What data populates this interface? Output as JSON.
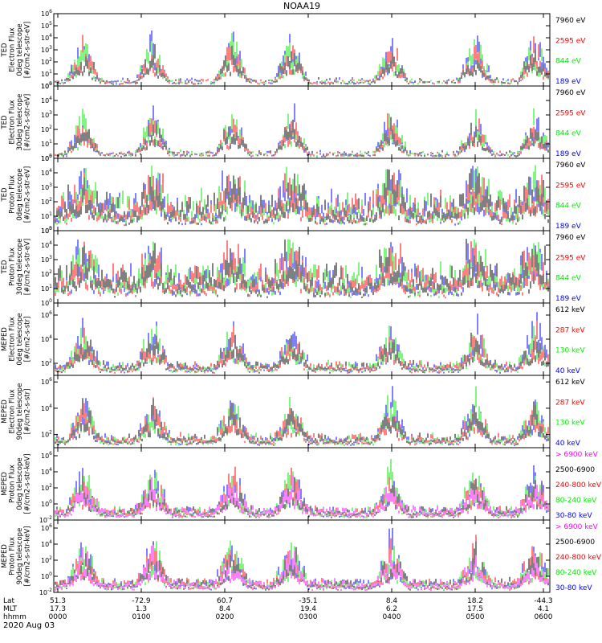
{
  "title": "NOAA19",
  "date_label": "2020 Aug 03",
  "time_axis": {
    "row_labels": [
      "Lat",
      "MLT",
      "hhmm"
    ],
    "ticks": [
      {
        "lat": "51.3",
        "mlt": "17.3",
        "hhmm": "0000"
      },
      {
        "lat": "-72.9",
        "mlt": "1.3",
        "hhmm": "0100"
      },
      {
        "lat": "60.7",
        "mlt": "8.4",
        "hhmm": "0200"
      },
      {
        "lat": "-35.1",
        "mlt": "19.4",
        "hhmm": "0300"
      },
      {
        "lat": "8.4",
        "mlt": "6.2",
        "hhmm": "0400"
      },
      {
        "lat": "18.2",
        "mlt": "17.5",
        "hhmm": "0500"
      },
      {
        "lat": "-44.3",
        "mlt": "4.1",
        "hhmm": "0600"
      }
    ]
  },
  "colors": {
    "black": "#000000",
    "red": "#ff0000",
    "green": "#00ee00",
    "blue": "#0000ff",
    "magenta": "#ff00ff"
  },
  "chart_data": [
    {
      "type": "scatter",
      "ylabel": [
        "TED",
        "Electron Flux",
        "0deg telescope",
        "[#/cm2-s-str-eV]"
      ],
      "yticks": [
        "10^0",
        "10^1",
        "10^2",
        "10^3",
        "10^4",
        "10^5",
        "10^6"
      ],
      "ylog": [
        0,
        6
      ],
      "legend": [
        {
          "label": "7960 eV",
          "color": "#000000"
        },
        {
          "label": "2595 eV",
          "color": "#ff0000"
        },
        {
          "label": "844 eV",
          "color": "#00ee00"
        },
        {
          "label": "189 eV",
          "color": "#0000ff"
        }
      ]
    },
    {
      "type": "scatter",
      "ylabel": [
        "TED",
        "Electron Flux",
        "30deg telescope",
        "[#/cm2-s-str-eV]"
      ],
      "yticks": [
        "10^0",
        "10^1",
        "10^2",
        "10^3",
        "10^4",
        "10^5"
      ],
      "ylog": [
        0,
        5
      ],
      "legend": [
        {
          "label": "7960 eV",
          "color": "#000000"
        },
        {
          "label": "2595 eV",
          "color": "#ff0000"
        },
        {
          "label": "844 eV",
          "color": "#00ee00"
        },
        {
          "label": "189 eV",
          "color": "#0000ff"
        }
      ]
    },
    {
      "type": "scatter",
      "ylabel": [
        "TED",
        "Proton Flux",
        "0deg telescope",
        "[#/cm2-s-str-eV]"
      ],
      "yticks": [
        "10^0",
        "10^1",
        "10^2",
        "10^3",
        "10^4",
        "10^5"
      ],
      "ylog": [
        0,
        5
      ],
      "legend": [
        {
          "label": "7960 eV",
          "color": "#000000"
        },
        {
          "label": "2595 eV",
          "color": "#ff0000"
        },
        {
          "label": "844 eV",
          "color": "#00ee00"
        },
        {
          "label": "189 eV",
          "color": "#0000ff"
        }
      ]
    },
    {
      "type": "scatter",
      "ylabel": [
        "TED",
        "Proton Flux",
        "30deg telescope",
        "[#/cm2-s-str-eV]"
      ],
      "yticks": [
        "10^0",
        "10^1",
        "10^2",
        "10^3",
        "10^4",
        "10^5"
      ],
      "ylog": [
        0,
        5
      ],
      "legend": [
        {
          "label": "7960 eV",
          "color": "#000000"
        },
        {
          "label": "2595 eV",
          "color": "#ff0000"
        },
        {
          "label": "844 eV",
          "color": "#00ee00"
        },
        {
          "label": "189 eV",
          "color": "#0000ff"
        }
      ]
    },
    {
      "type": "scatter",
      "ylabel": [
        "MEPED",
        "Electron Flux",
        "0deg telescope",
        "[#/cm2-s-str]"
      ],
      "yticks": [
        "10^2",
        "10^4",
        "10^6"
      ],
      "ylog": [
        1,
        7
      ],
      "legend": [
        {
          "label": "612 keV",
          "color": "#000000"
        },
        {
          "label": "287 keV",
          "color": "#ff0000"
        },
        {
          "label": "130 keV",
          "color": "#00ee00"
        },
        {
          "label": "40 keV",
          "color": "#0000ff"
        }
      ]
    },
    {
      "type": "scatter",
      "ylabel": [
        "MEPED",
        "Electron Flux",
        "90deg telescope",
        "[#/cm2-s-str]"
      ],
      "yticks": [
        "10^2",
        "10^4",
        "10^6"
      ],
      "ylog": [
        1,
        6.5
      ],
      "legend": [
        {
          "label": "612 keV",
          "color": "#000000"
        },
        {
          "label": "287 keV",
          "color": "#ff0000"
        },
        {
          "label": "130 keV",
          "color": "#00ee00"
        },
        {
          "label": "40 keV",
          "color": "#0000ff"
        }
      ]
    },
    {
      "type": "scatter",
      "ylabel": [
        "MEPED",
        "Proton Flux",
        "0deg telescope",
        "[#/cm2-s-str-keV]"
      ],
      "yticks": [
        "10^-2",
        "10^0",
        "10^2",
        "10^4",
        "10^6"
      ],
      "ylog": [
        -2,
        7
      ],
      "legend": [
        {
          "label": "> 6900 keV",
          "color": "#ff00ff"
        },
        {
          "label": "2500-6900",
          "color": "#000000"
        },
        {
          "label": "240-800 keV",
          "color": "#ff0000"
        },
        {
          "label": "80-240 keV",
          "color": "#00ee00"
        },
        {
          "label": "30-80 keV",
          "color": "#0000ff"
        }
      ]
    },
    {
      "type": "scatter",
      "ylabel": [
        "MEPED",
        "Proton Flux",
        "90deg telescope",
        "[#/cm2-s-str-keV]"
      ],
      "yticks": [
        "10^-2",
        "10^0",
        "10^2",
        "10^4",
        "10^6"
      ],
      "ylog": [
        -2,
        7
      ],
      "legend": [
        {
          "label": "> 6900 keV",
          "color": "#ff00ff"
        },
        {
          "label": "2500-6900",
          "color": "#000000"
        },
        {
          "label": "240-800 keV",
          "color": "#ff0000"
        },
        {
          "label": "80-240 keV",
          "color": "#00ee00"
        },
        {
          "label": "30-80 keV",
          "color": "#0000ff"
        }
      ]
    }
  ]
}
